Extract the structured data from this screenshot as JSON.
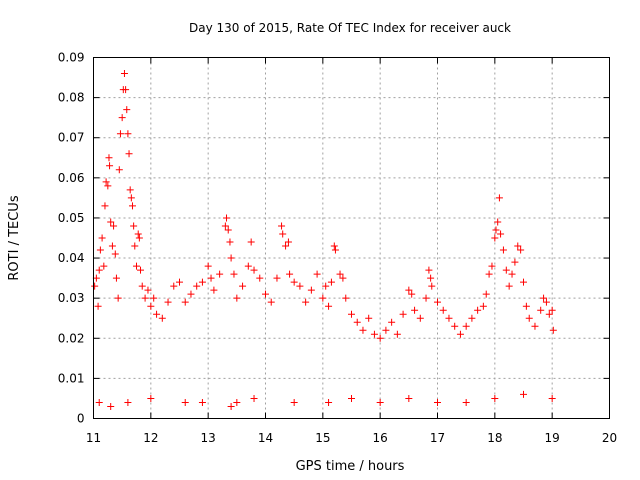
{
  "chart_data": {
    "type": "scatter",
    "title": "Day 130 of 2015, Rate Of TEC Index for receiver auck",
    "xlabel": "GPS time / hours",
    "ylabel": "ROTI / TECUs",
    "xlim": [
      11,
      20
    ],
    "ylim": [
      0,
      0.09
    ],
    "xticks": [
      "11",
      "12",
      "13",
      "14",
      "15",
      "16",
      "17",
      "18",
      "19",
      "20"
    ],
    "yticks": [
      "0",
      "0.01",
      "0.02",
      "0.03",
      "0.04",
      "0.05",
      "0.06",
      "0.07",
      "0.08",
      "0.09"
    ],
    "grid": true,
    "marker": "+",
    "color": "#ff0000",
    "series": [
      {
        "points": [
          [
            11.02,
            0.033
          ],
          [
            11.05,
            0.035
          ],
          [
            11.08,
            0.028
          ],
          [
            11.1,
            0.037
          ],
          [
            11.12,
            0.042
          ],
          [
            11.15,
            0.045
          ],
          [
            11.18,
            0.038
          ],
          [
            11.2,
            0.053
          ],
          [
            11.22,
            0.059
          ],
          [
            11.25,
            0.058
          ],
          [
            11.27,
            0.065
          ],
          [
            11.28,
            0.063
          ],
          [
            11.3,
            0.049
          ],
          [
            11.33,
            0.043
          ],
          [
            11.35,
            0.048
          ],
          [
            11.38,
            0.041
          ],
          [
            11.4,
            0.035
          ],
          [
            11.43,
            0.03
          ],
          [
            11.45,
            0.062
          ],
          [
            11.47,
            0.071
          ],
          [
            11.5,
            0.075
          ],
          [
            11.52,
            0.082
          ],
          [
            11.54,
            0.086
          ],
          [
            11.56,
            0.082
          ],
          [
            11.58,
            0.077
          ],
          [
            11.6,
            0.071
          ],
          [
            11.62,
            0.066
          ],
          [
            11.64,
            0.057
          ],
          [
            11.66,
            0.055
          ],
          [
            11.68,
            0.053
          ],
          [
            11.7,
            0.048
          ],
          [
            11.72,
            0.043
          ],
          [
            11.75,
            0.038
          ],
          [
            11.78,
            0.046
          ],
          [
            11.8,
            0.045
          ],
          [
            11.82,
            0.037
          ],
          [
            11.85,
            0.033
          ],
          [
            11.9,
            0.03
          ],
          [
            11.95,
            0.032
          ],
          [
            12.0,
            0.028
          ],
          [
            12.05,
            0.03
          ],
          [
            12.1,
            0.026
          ],
          [
            12.2,
            0.025
          ],
          [
            12.3,
            0.029
          ],
          [
            12.4,
            0.033
          ],
          [
            12.5,
            0.034
          ],
          [
            12.6,
            0.029
          ],
          [
            12.7,
            0.031
          ],
          [
            12.8,
            0.033
          ],
          [
            12.9,
            0.034
          ],
          [
            13.0,
            0.038
          ],
          [
            13.05,
            0.035
          ],
          [
            13.1,
            0.032
          ],
          [
            13.2,
            0.036
          ],
          [
            13.3,
            0.048
          ],
          [
            13.32,
            0.05
          ],
          [
            13.35,
            0.047
          ],
          [
            13.38,
            0.044
          ],
          [
            13.4,
            0.04
          ],
          [
            13.45,
            0.036
          ],
          [
            13.5,
            0.03
          ],
          [
            13.6,
            0.033
          ],
          [
            13.7,
            0.038
          ],
          [
            13.75,
            0.044
          ],
          [
            13.8,
            0.037
          ],
          [
            13.9,
            0.035
          ],
          [
            14.0,
            0.031
          ],
          [
            14.1,
            0.029
          ],
          [
            14.2,
            0.035
          ],
          [
            14.28,
            0.048
          ],
          [
            14.3,
            0.046
          ],
          [
            14.35,
            0.043
          ],
          [
            14.4,
            0.044
          ],
          [
            14.42,
            0.036
          ],
          [
            14.5,
            0.034
          ],
          [
            14.6,
            0.033
          ],
          [
            14.7,
            0.029
          ],
          [
            14.8,
            0.032
          ],
          [
            14.9,
            0.036
          ],
          [
            15.0,
            0.03
          ],
          [
            15.05,
            0.033
          ],
          [
            15.1,
            0.028
          ],
          [
            15.15,
            0.034
          ],
          [
            15.2,
            0.043
          ],
          [
            15.22,
            0.042
          ],
          [
            15.3,
            0.036
          ],
          [
            15.35,
            0.035
          ],
          [
            15.4,
            0.03
          ],
          [
            15.5,
            0.026
          ],
          [
            15.6,
            0.024
          ],
          [
            15.7,
            0.022
          ],
          [
            15.8,
            0.025
          ],
          [
            15.9,
            0.021
          ],
          [
            16.0,
            0.02
          ],
          [
            16.1,
            0.022
          ],
          [
            16.2,
            0.024
          ],
          [
            16.3,
            0.021
          ],
          [
            16.4,
            0.026
          ],
          [
            16.5,
            0.032
          ],
          [
            16.55,
            0.031
          ],
          [
            16.6,
            0.027
          ],
          [
            16.7,
            0.025
          ],
          [
            16.8,
            0.03
          ],
          [
            16.85,
            0.037
          ],
          [
            16.88,
            0.035
          ],
          [
            16.9,
            0.033
          ],
          [
            17.0,
            0.029
          ],
          [
            17.1,
            0.027
          ],
          [
            17.2,
            0.025
          ],
          [
            17.3,
            0.023
          ],
          [
            17.4,
            0.021
          ],
          [
            17.5,
            0.023
          ],
          [
            17.6,
            0.025
          ],
          [
            17.7,
            0.027
          ],
          [
            17.8,
            0.028
          ],
          [
            17.85,
            0.031
          ],
          [
            17.9,
            0.036
          ],
          [
            17.95,
            0.038
          ],
          [
            18.0,
            0.045
          ],
          [
            18.02,
            0.047
          ],
          [
            18.05,
            0.049
          ],
          [
            18.08,
            0.055
          ],
          [
            18.1,
            0.046
          ],
          [
            18.15,
            0.042
          ],
          [
            18.2,
            0.037
          ],
          [
            18.25,
            0.033
          ],
          [
            18.3,
            0.036
          ],
          [
            18.35,
            0.039
          ],
          [
            18.4,
            0.043
          ],
          [
            18.45,
            0.042
          ],
          [
            18.5,
            0.034
          ],
          [
            18.55,
            0.028
          ],
          [
            18.6,
            0.025
          ],
          [
            18.7,
            0.023
          ],
          [
            18.8,
            0.027
          ],
          [
            18.85,
            0.03
          ],
          [
            18.9,
            0.029
          ],
          [
            18.95,
            0.026
          ],
          [
            19.0,
            0.027
          ],
          [
            19.02,
            0.022
          ],
          [
            11.1,
            0.004
          ],
          [
            11.3,
            0.003
          ],
          [
            11.6,
            0.004
          ],
          [
            12.0,
            0.005
          ],
          [
            12.6,
            0.004
          ],
          [
            12.9,
            0.004
          ],
          [
            13.4,
            0.003
          ],
          [
            13.5,
            0.004
          ],
          [
            13.8,
            0.005
          ],
          [
            14.5,
            0.004
          ],
          [
            15.1,
            0.004
          ],
          [
            15.5,
            0.005
          ],
          [
            16.0,
            0.004
          ],
          [
            16.5,
            0.005
          ],
          [
            17.0,
            0.004
          ],
          [
            17.5,
            0.004
          ],
          [
            18.0,
            0.005
          ],
          [
            18.5,
            0.006
          ],
          [
            19.0,
            0.005
          ]
        ]
      }
    ]
  }
}
